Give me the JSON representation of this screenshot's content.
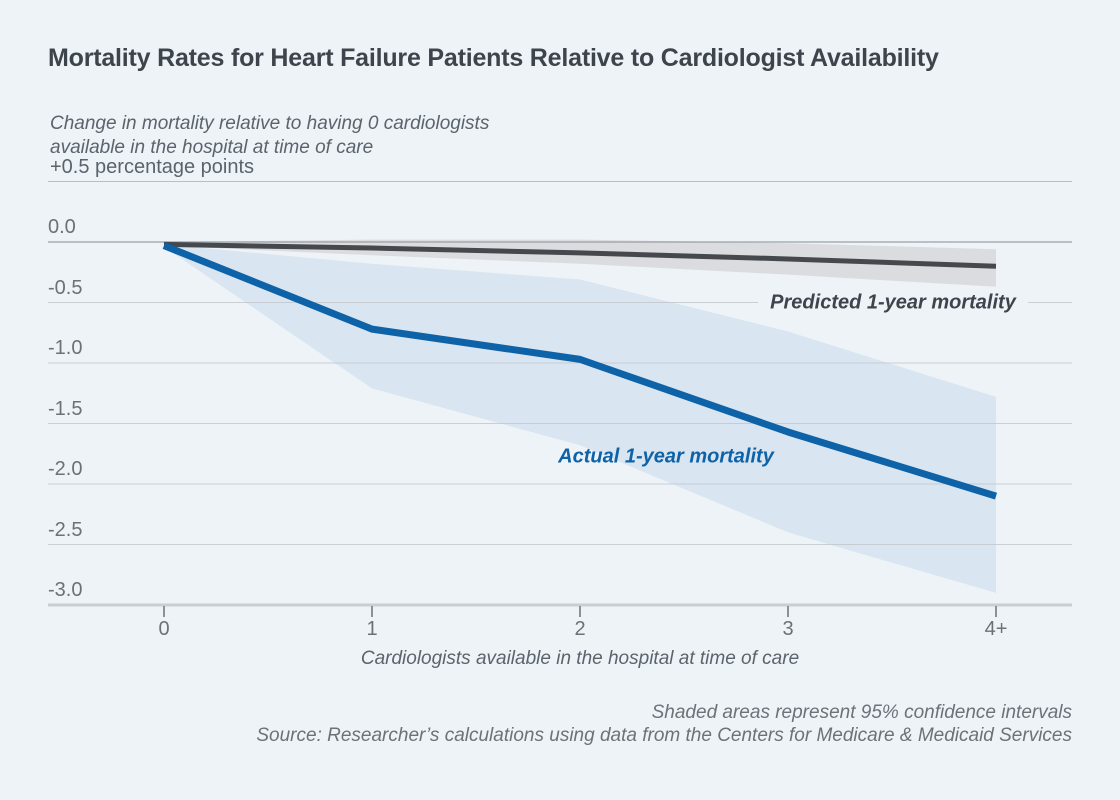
{
  "figure": {
    "title": "Mortality Rates for Heart Failure Patients Relative to Cardiologist Availability",
    "subtitle_line1": "Change in mortality relative to having 0 cardiologists",
    "subtitle_line2": "available in the hospital at time of care",
    "unit_label": "+0.5 percentage points",
    "xaxis_title": "Cardiologists available in the hospital at time of care",
    "note_line1": "Shaded areas represent 95% confidence intervals",
    "note_line2": "Source: Researcher’s calculations using data from the Centers for Medicare & Medicaid Services"
  },
  "colors": {
    "background": "#eef3f8",
    "grid_top": "#aeb5bb",
    "grid_zero": "#9aa1a8",
    "grid": "#c2c8cd",
    "axis": "#c9ced3",
    "tick": "#8a9197",
    "text_dark": "#3e444b",
    "text_gray": "#5b636b",
    "tick_text": "#6a7177"
  },
  "chart_data": {
    "type": "line",
    "title": "Mortality Rates for Heart Failure Patients Relative to Cardiologist Availability",
    "xlabel": "Cardiologists available in the hospital at time of care",
    "ylabel": "Change in mortality, percentage points, relative to 0 cardiologists available",
    "categories": [
      "0",
      "1",
      "2",
      "3",
      "4+"
    ],
    "ylim": [
      -3.0,
      0.5
    ],
    "grid": true,
    "legend_position": "inline-labels",
    "note": "Shaded areas represent 95% confidence intervals",
    "yticks": [
      {
        "v": 0.5,
        "label": ""
      },
      {
        "v": 0.0,
        "label": "0.0"
      },
      {
        "v": -0.5,
        "label": "-0.5"
      },
      {
        "v": -1.0,
        "label": "-1.0"
      },
      {
        "v": -1.5,
        "label": "-1.5"
      },
      {
        "v": -2.0,
        "label": "-2.0"
      },
      {
        "v": -2.5,
        "label": "-2.5"
      },
      {
        "v": -3.0,
        "label": "-3.0"
      }
    ],
    "series": [
      {
        "name": "Predicted 1-year mortality",
        "values": [
          -0.02,
          -0.05,
          -0.09,
          -0.14,
          -0.2
        ],
        "ci_upper": [
          0.0,
          0.02,
          0.02,
          -0.01,
          -0.06
        ],
        "ci_lower": [
          -0.03,
          -0.11,
          -0.18,
          -0.27,
          -0.37
        ],
        "line_color": "#45494e",
        "band_color": "#dbdcdf",
        "line_width": 5
      },
      {
        "name": "Actual 1-year mortality",
        "values": [
          -0.03,
          -0.72,
          -0.97,
          -1.57,
          -2.1
        ],
        "ci_upper": [
          -0.02,
          -0.18,
          -0.31,
          -0.74,
          -1.28
        ],
        "ci_lower": [
          -0.04,
          -1.21,
          -1.68,
          -2.4,
          -2.9
        ],
        "line_color": "#0d62a8",
        "band_color": "#d9e5f0",
        "line_width": 7
      }
    ]
  }
}
